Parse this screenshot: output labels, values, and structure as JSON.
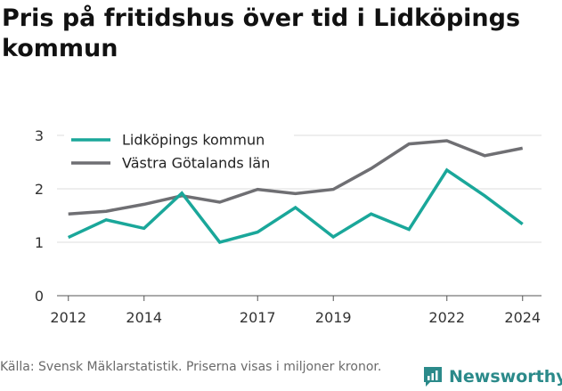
{
  "title": "Pris på fritidshus över tid i Lidköpings kommun",
  "source": "Källa: Svensk Mäklarstatistik. Priserna visas i miljoner kronor.",
  "brand": {
    "name": "Newsworthy",
    "icon": "newsworthy-logo-icon",
    "color": "#2b8a8a"
  },
  "chart_data": {
    "type": "line",
    "title": "Pris på fritidshus över tid i Lidköpings kommun",
    "xlabel": "",
    "ylabel": "",
    "x": [
      2012,
      2013,
      2014,
      2015,
      2016,
      2017,
      2018,
      2019,
      2020,
      2021,
      2022,
      2023,
      2024
    ],
    "x_ticks": [
      2012,
      2014,
      2017,
      2019,
      2022,
      2024
    ],
    "xlim": [
      2011.7,
      2024.5
    ],
    "ylim": [
      0,
      3.2
    ],
    "y_ticks": [
      0,
      1,
      2,
      3
    ],
    "grid": true,
    "legend_position": "top-left",
    "series": [
      {
        "name": "Lidköpings kommun",
        "color": "#1aa79a",
        "values": [
          1.09,
          1.42,
          1.26,
          1.92,
          1.0,
          1.19,
          1.65,
          1.1,
          1.53,
          1.24,
          2.35,
          1.87,
          1.34
        ]
      },
      {
        "name": "Västra Götalands län",
        "color": "#6f6f73",
        "values": [
          1.53,
          1.58,
          1.71,
          1.87,
          1.75,
          1.99,
          1.91,
          1.99,
          2.38,
          2.84,
          2.9,
          2.62,
          2.76
        ]
      }
    ]
  }
}
